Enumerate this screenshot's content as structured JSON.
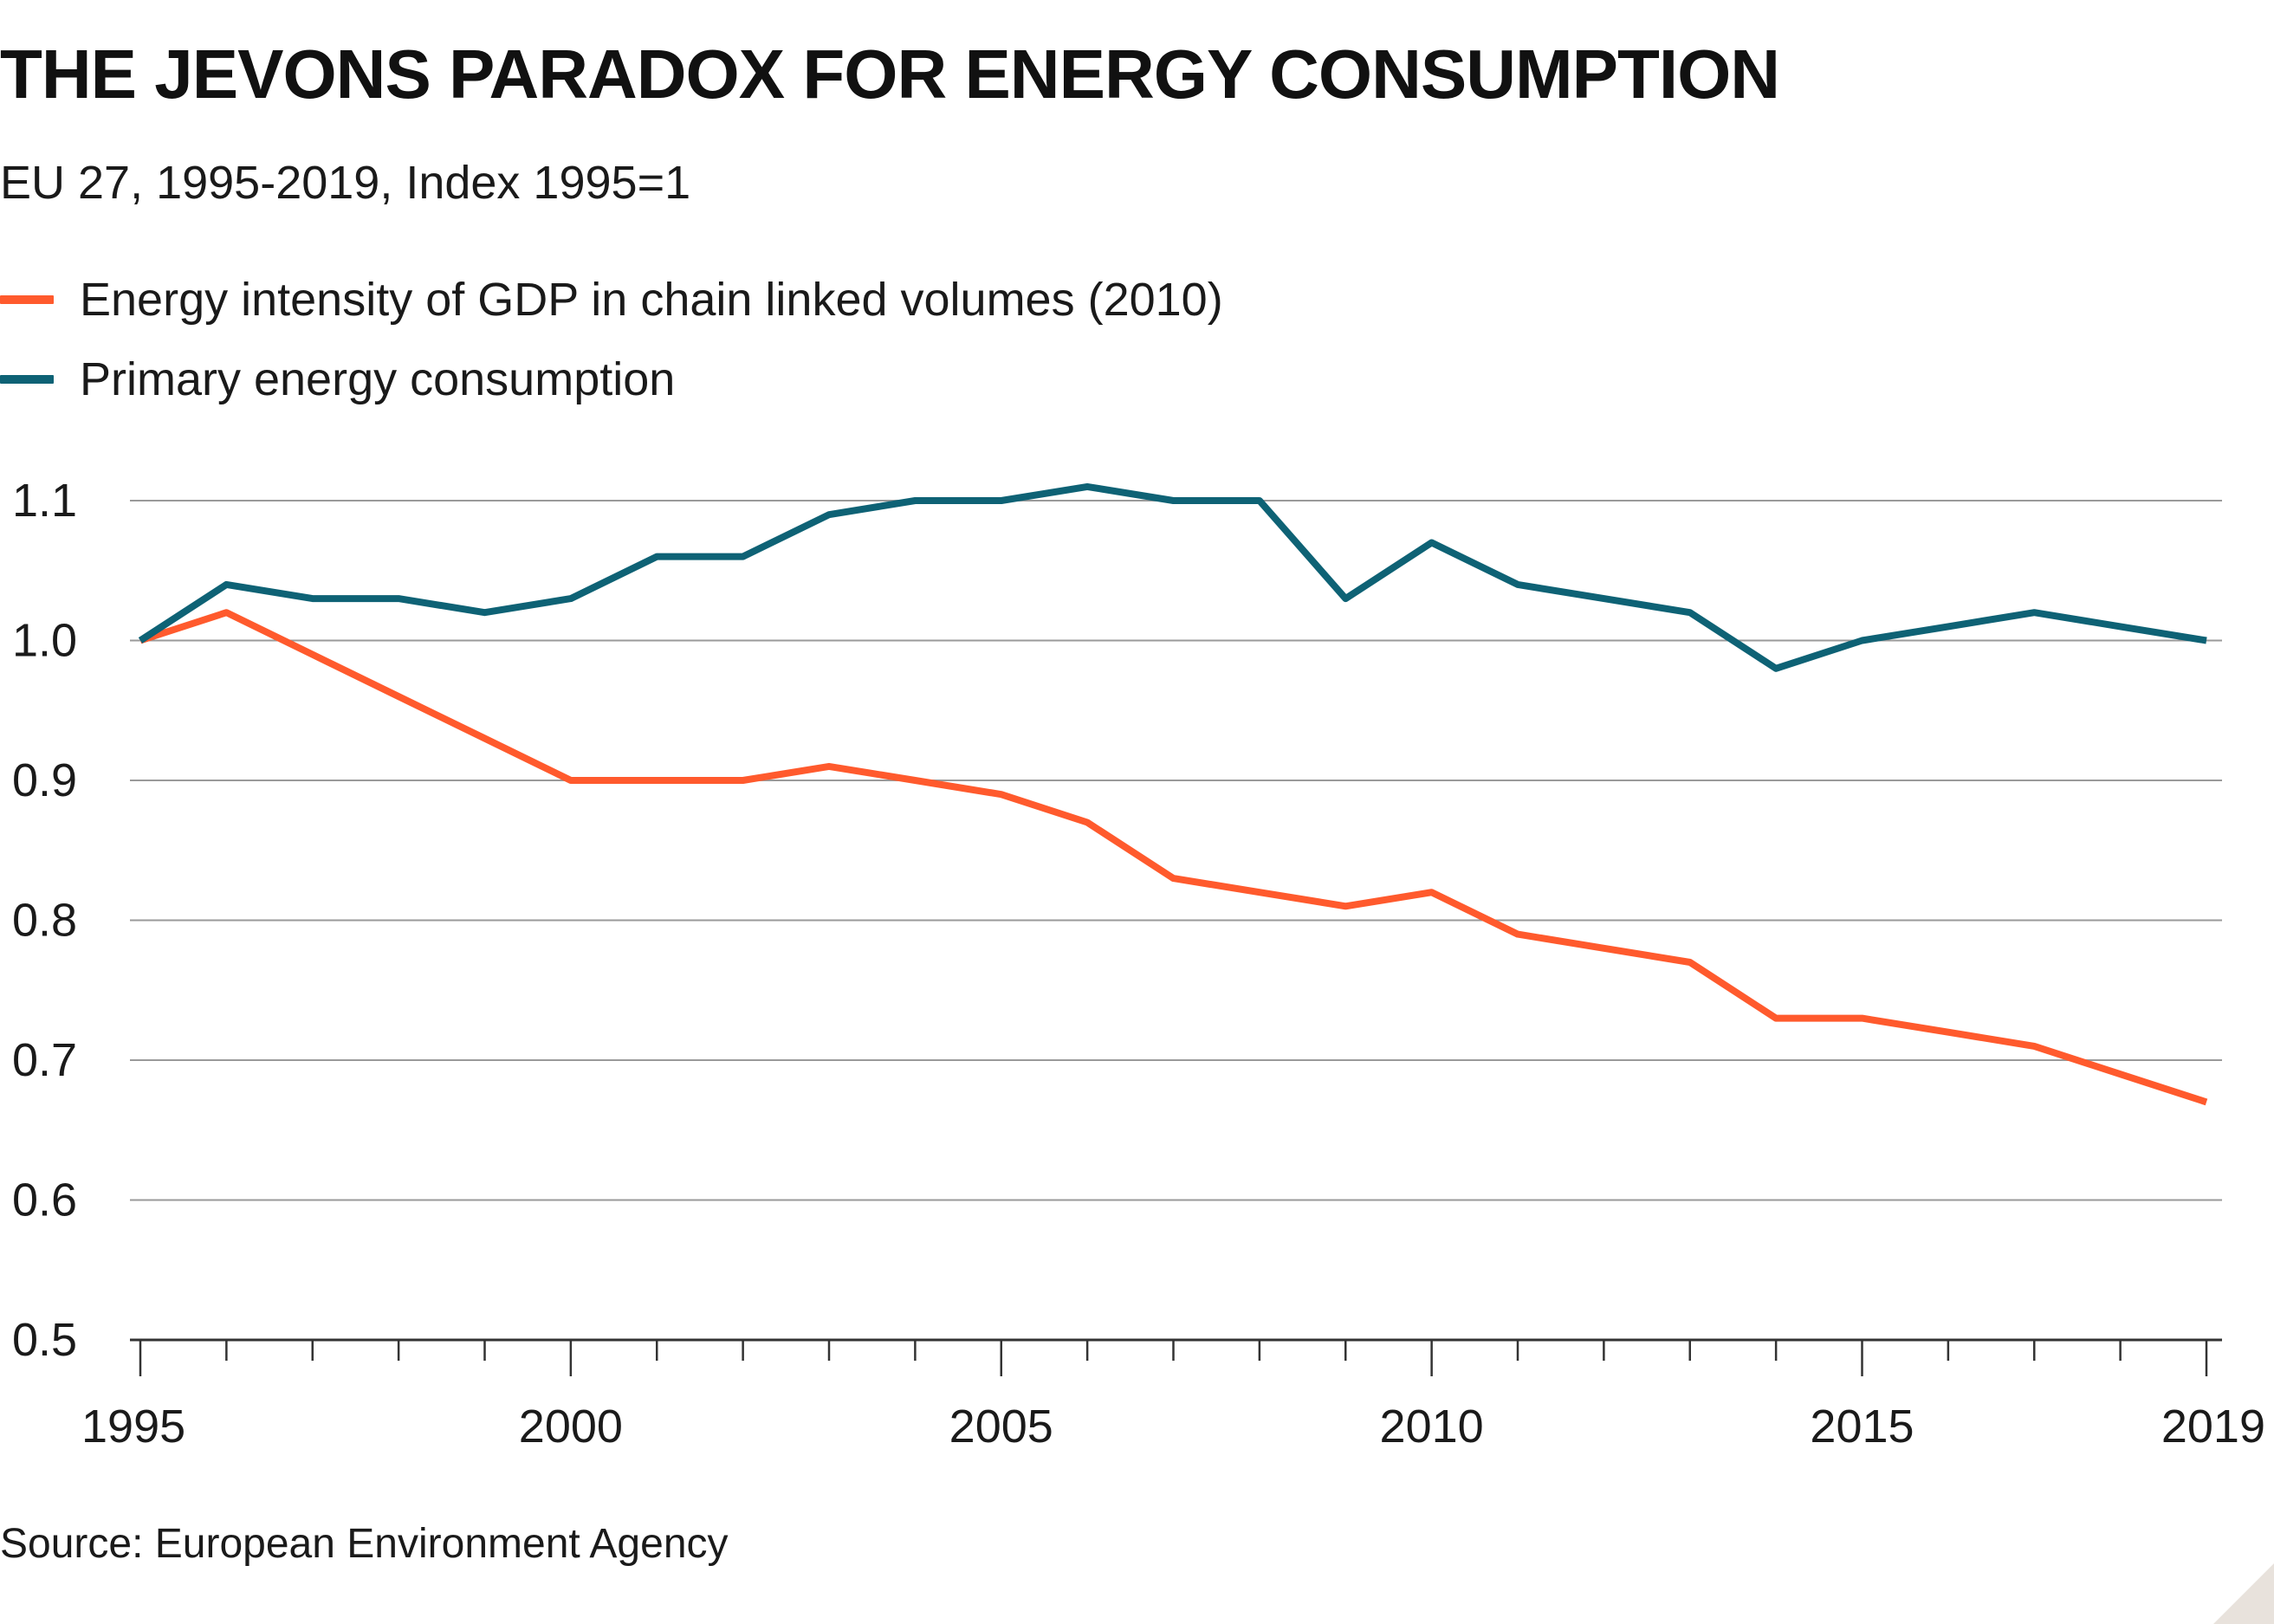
{
  "header": {
    "title": "THE JEVONS PARADOX FOR ENERGY CONSUMPTION",
    "subtitle": "EU 27, 1995-2019, Index 1995=1"
  },
  "footer": {
    "source": "Source: European Environment Agency"
  },
  "colors": {
    "intensity": "#ff5a2d",
    "consumption": "#0e6275",
    "grid": "#9a9a9a",
    "axis": "#333333"
  },
  "chart_data": {
    "type": "line",
    "title": "THE JEVONS PARADOX FOR ENERGY CONSUMPTION",
    "subtitle": "EU 27, 1995-2019, Index 1995=1",
    "xlabel": "",
    "ylabel": "",
    "x": [
      1995,
      1996,
      1997,
      1998,
      1999,
      2000,
      2001,
      2002,
      2003,
      2004,
      2005,
      2006,
      2007,
      2008,
      2009,
      2010,
      2011,
      2012,
      2013,
      2014,
      2015,
      2016,
      2017,
      2018,
      2019
    ],
    "xlim": [
      1995,
      2019
    ],
    "ylim": [
      0.5,
      1.1
    ],
    "x_ticks": [
      1995,
      2000,
      2005,
      2010,
      2015,
      2019
    ],
    "y_ticks": [
      0.5,
      0.6,
      0.7,
      0.8,
      0.9,
      1.0,
      1.1
    ],
    "y_tick_labels": [
      "0.5",
      "0.6",
      "0.7",
      "0.8",
      "0.9",
      "1.0",
      "1.1"
    ],
    "grid": true,
    "legend_position": "top-left",
    "series": [
      {
        "name": "Energy intensity of GDP in chain linked volumes (2010)",
        "color": "#ff5a2d",
        "values": [
          1.0,
          1.02,
          0.99,
          0.96,
          0.93,
          0.9,
          0.9,
          0.9,
          0.91,
          0.9,
          0.89,
          0.87,
          0.83,
          0.82,
          0.81,
          0.82,
          0.79,
          0.78,
          0.77,
          0.73,
          0.73,
          0.72,
          0.71,
          0.69,
          0.67
        ]
      },
      {
        "name": "Primary energy consumption",
        "color": "#0e6275",
        "values": [
          1.0,
          1.04,
          1.03,
          1.03,
          1.02,
          1.03,
          1.06,
          1.06,
          1.09,
          1.1,
          1.1,
          1.11,
          1.1,
          1.1,
          1.03,
          1.07,
          1.04,
          1.03,
          1.02,
          0.98,
          1.0,
          1.01,
          1.02,
          1.01,
          1.0
        ]
      }
    ]
  }
}
